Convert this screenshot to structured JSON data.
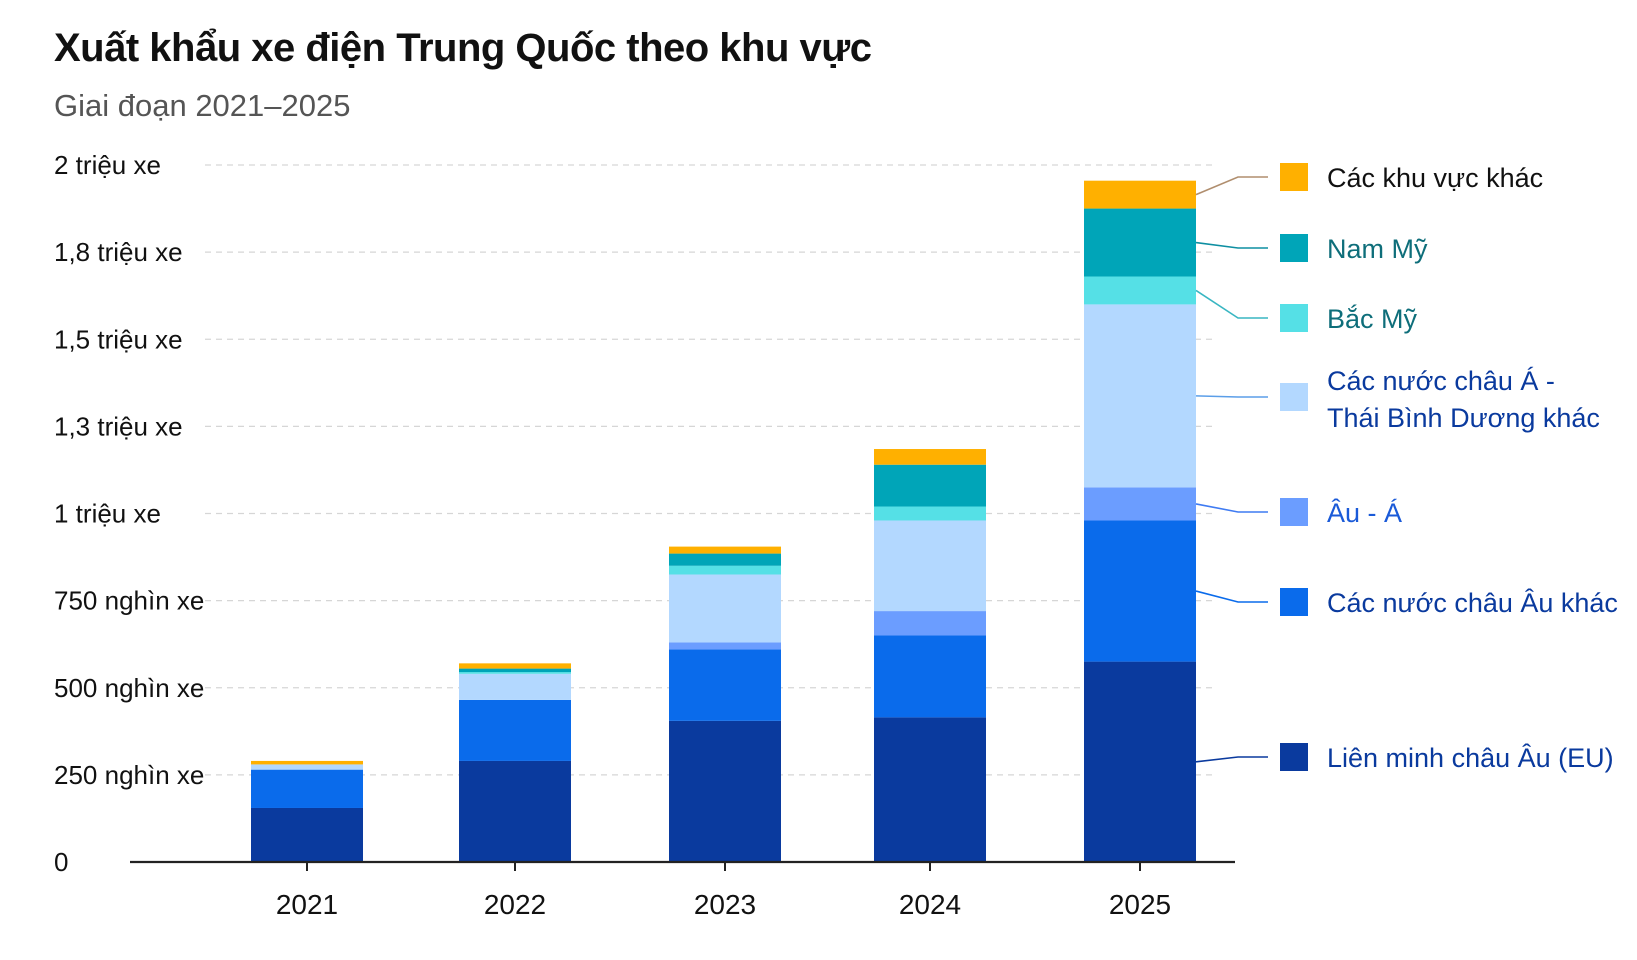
{
  "title": "Xuất khẩu xe điện Trung Quốc theo khu vực",
  "subtitle": "Giai đoạn 2021–2025",
  "chart_data": {
    "type": "bar",
    "stacked": true,
    "title": "Xuất khẩu xe điện Trung Quốc theo khu vực",
    "subtitle": "Giai đoạn 2021–2025",
    "xlabel": "",
    "ylabel": "",
    "categories": [
      "2021",
      "2022",
      "2023",
      "2024",
      "2025"
    ],
    "ylim": [
      0,
      2000000
    ],
    "y_ticks": [
      {
        "value": 0,
        "label": "0"
      },
      {
        "value": 250000,
        "label": "250 nghìn xe"
      },
      {
        "value": 500000,
        "label": "500 nghìn xe"
      },
      {
        "value": 750000,
        "label": "750 nghìn xe"
      },
      {
        "value": 1000000,
        "label": "1 triệu xe"
      },
      {
        "value": 1250000,
        "label": "1,3 triệu xe"
      },
      {
        "value": 1500000,
        "label": "1,5 triệu xe"
      },
      {
        "value": 1750000,
        "label": "1,8 triệu xe"
      },
      {
        "value": 2000000,
        "label": "2 triệu xe"
      }
    ],
    "grid": true,
    "legend_position": "right",
    "series": [
      {
        "name": "Liên minh châu Âu (EU)",
        "color": "#0A3A9E",
        "text_color": "#0A3A9E",
        "values": [
          155000,
          290000,
          405000,
          415000,
          575000
        ]
      },
      {
        "name": "Các nước châu Âu khác",
        "color": "#0A6BEB",
        "text_color": "#0A3A9E",
        "values": [
          110000,
          175000,
          205000,
          235000,
          405000
        ]
      },
      {
        "name": "Âu - Á",
        "color": "#6B9DFF",
        "text_color": "#1A5AD8",
        "values": [
          0,
          0,
          20000,
          70000,
          95000
        ]
      },
      {
        "name": "Các nước châu Á - Thái Bình Dương khác",
        "color": "#B3D8FF",
        "text_color": "#0A3A9E",
        "values": [
          15000,
          75000,
          195000,
          260000,
          525000
        ]
      },
      {
        "name": "Bắc Mỹ",
        "color": "#55E0E6",
        "text_color": "#0E6E7A",
        "values": [
          0,
          5000,
          25000,
          40000,
          80000
        ]
      },
      {
        "name": "Nam Mỹ",
        "color": "#00A5B8",
        "text_color": "#0E6E7A",
        "values": [
          0,
          10000,
          35000,
          120000,
          195000
        ]
      },
      {
        "name": "Các khu vực khác",
        "color": "#FFB000",
        "text_color": "#111111",
        "values": [
          10000,
          15000,
          20000,
          45000,
          80000
        ]
      }
    ]
  },
  "legend": {
    "items": [
      {
        "lines": [
          "Liên minh châu Âu (EU)"
        ]
      },
      {
        "lines": [
          "Các nước châu Âu khác"
        ]
      },
      {
        "lines": [
          "Âu - Á"
        ]
      },
      {
        "lines": [
          "Các nước châu Á -",
          "Thái Bình Dương khác"
        ]
      },
      {
        "lines": [
          "Bắc Mỹ"
        ]
      },
      {
        "lines": [
          "Nam Mỹ"
        ]
      },
      {
        "lines": [
          "Các khu vực khác"
        ]
      }
    ]
  }
}
